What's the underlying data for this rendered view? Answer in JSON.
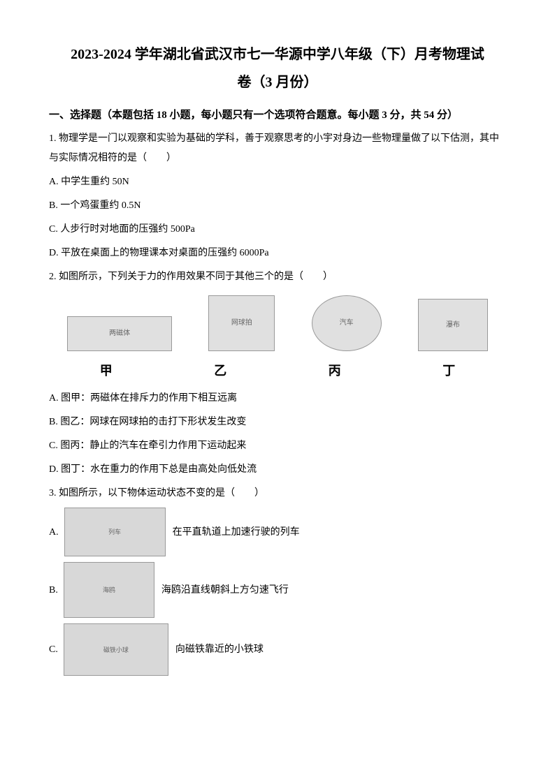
{
  "title_line1": "2023-2024 学年湖北省武汉市七一华源中学八年级（下）月考物理试",
  "title_line2": "卷（3 月份）",
  "section_header": "一、选择题（本题包括 18 小题，每小题只有一个选项符合题意。每小题 3 分，共 54 分）",
  "q1": {
    "text": "1. 物理学是一门以观察和实验为基础的学科，善于观察思考的小宇对身边一些物理量做了以下估测，其中与实际情况相符的是（　　）",
    "optA": "A. 中学生重约 50N",
    "optB": "B. 一个鸡蛋重约 0.5N",
    "optC": "C. 人步行时对地面的压强约 500Pa",
    "optD": "D. 平放在桌面上的物理课本对桌面的压强约 6000Pa"
  },
  "q2": {
    "text": "2. 如图所示，下列关于力的作用效果不同于其他三个的是（　　）",
    "captions": {
      "jia": "甲",
      "yi": "乙",
      "bing": "丙",
      "ding": "丁"
    },
    "images": {
      "jia_alt": "两磁体",
      "yi_alt": "网球拍",
      "bing_alt": "汽车",
      "ding_alt": "瀑布"
    },
    "optA": "A. 图甲：两磁体在排斥力的作用下相互远离",
    "optB": "B. 图乙：网球在网球拍的击打下形状发生改变",
    "optC": "C. 图丙：静止的汽车在牵引力作用下运动起来",
    "optD": "D. 图丁：水在重力的作用下总是由高处向低处流"
  },
  "q3": {
    "text": "3. 如图所示，以下物体运动状态不变的是（　　）",
    "optA_letter": "A.",
    "optA_text": "在平直轨道上加速行驶的列车",
    "optA_img_alt": "列车",
    "optB_letter": "B.",
    "optB_text": "海鸥沿直线朝斜上方匀速飞行",
    "optB_img_alt": "海鸥",
    "optC_letter": "C.",
    "optC_text": "向磁铁靠近的小铁球",
    "optC_img_alt": "磁铁小球"
  },
  "colors": {
    "text": "#000000",
    "background": "#ffffff",
    "placeholder_bg": "#e0e0e0",
    "placeholder_border": "#999999"
  },
  "typography": {
    "title_fontsize": 20,
    "body_fontsize": 14,
    "caption_fontsize": 18
  }
}
